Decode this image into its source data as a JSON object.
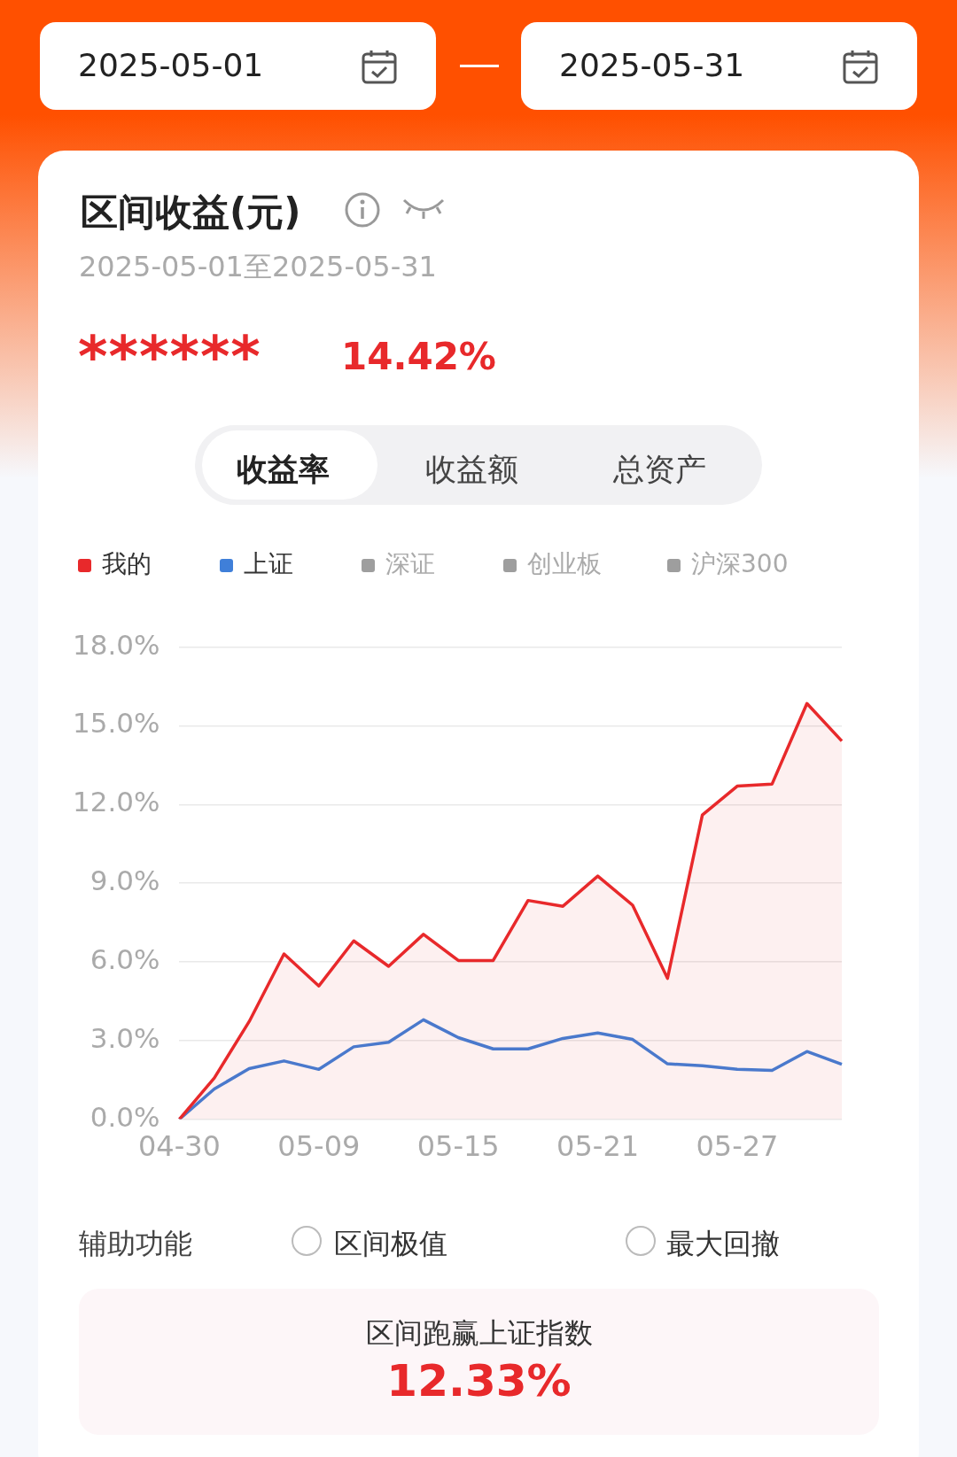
{
  "chart_data": {
    "type": "line",
    "title": "区间收益(元)",
    "subtitle": "2025-05-01至2025-05-31",
    "categories": [
      "04-30",
      null,
      null,
      null,
      "05-09",
      null,
      null,
      null,
      "05-15",
      null,
      null,
      null,
      "05-21",
      null,
      null,
      null,
      "05-27",
      null,
      null,
      null
    ],
    "series": [
      {
        "name": "我的",
        "type": "area",
        "color": "#e8292b",
        "values": [
          0,
          1.57,
          3.72,
          6.3,
          5.08,
          6.8,
          5.83,
          7.05,
          6.05,
          6.05,
          8.34,
          8.12,
          9.27,
          8.16,
          5.37,
          11.6,
          12.7,
          12.78,
          15.85,
          14.42
        ]
      },
      {
        "name": "上证",
        "type": "line",
        "color": "#3f7fd9",
        "values": [
          0,
          1.15,
          1.93,
          2.22,
          1.9,
          2.76,
          2.93,
          3.79,
          3.11,
          2.68,
          2.68,
          3.08,
          3.29,
          3.04,
          2.11,
          2.04,
          1.9,
          1.86,
          2.58,
          2.09
        ]
      },
      {
        "name": "深证",
        "color": "#9e9e9e",
        "values": [
          null,
          null,
          null,
          null,
          null,
          null,
          null,
          null,
          null,
          null,
          null,
          null,
          null,
          null,
          null,
          null,
          null,
          null,
          null,
          null
        ]
      },
      {
        "name": "创业板",
        "color": "#9e9e9e",
        "values": [
          null,
          null,
          null,
          null,
          null,
          null,
          null,
          null,
          null,
          null,
          null,
          null,
          null,
          null,
          null,
          null,
          null,
          null,
          null,
          null
        ]
      },
      {
        "name": "沪深300",
        "color": "#9e9e9e",
        "values": [
          null,
          null,
          null,
          null,
          null,
          null,
          null,
          null,
          null,
          null,
          null,
          null,
          null,
          null,
          null,
          null,
          null,
          null,
          null,
          null
        ]
      }
    ],
    "ylim": [
      0,
      18
    ],
    "yticks": [
      {
        "value": 0,
        "label": "0.0%"
      },
      {
        "value": 3,
        "label": "3.0%"
      },
      {
        "value": 6,
        "label": "6.0%"
      },
      {
        "value": 9,
        "label": "9.0%"
      },
      {
        "value": 12,
        "label": "12.0%"
      },
      {
        "value": 15,
        "label": "15.0%"
      },
      {
        "value": 18,
        "label": "18.0%"
      }
    ],
    "grid": "y",
    "legend": "top",
    "marker": "none",
    "line_style": "solid",
    "annotations": [
      "2025-05-01",
      "2025-05-31",
      "******",
      "14.42%",
      "收益率",
      "收益额",
      "总资产",
      "辅助功能",
      "区间极值",
      "最大回撤",
      "区间跑赢上证指数",
      "12.33%"
    ]
  }
}
